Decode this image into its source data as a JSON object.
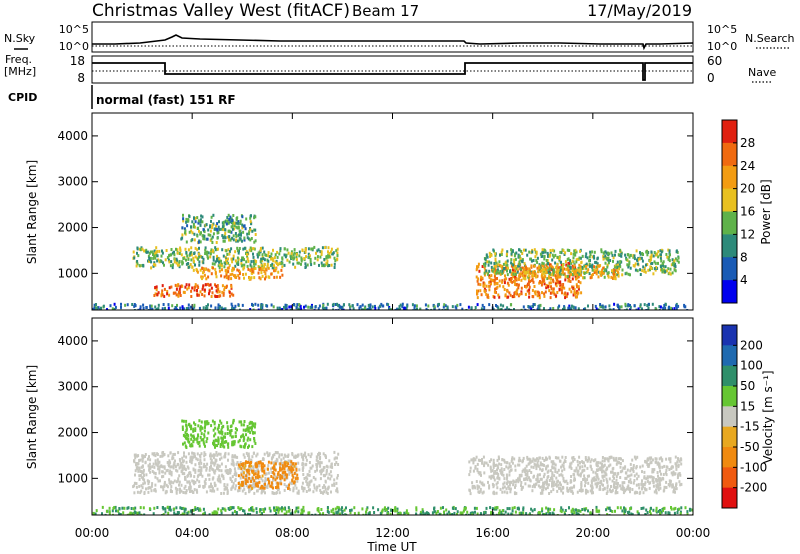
{
  "header": {
    "title": "Christmas Valley West (fitACF)",
    "beam": "Beam 17",
    "date": "17/May/2019"
  },
  "summary_panels": {
    "nsky_label": "N.Sky",
    "nsearch_label": "N.Search",
    "noise_ticks": [
      "10^5",
      "10^0"
    ],
    "freq_label_1": "Freq.",
    "freq_label_2": "[MHz]",
    "freq_ticks": [
      "18",
      "8"
    ],
    "nave_label": "Nave",
    "nave_ticks": [
      "60",
      "0"
    ],
    "cpid_label": "CPID",
    "cpid_text": "normal (fast) 151 RF"
  },
  "colors": {
    "power_scale": [
      "#0000ee",
      "#1a5bb5",
      "#2d8a7a",
      "#5fb24a",
      "#e8c020",
      "#f39c12",
      "#f06a10",
      "#e02010"
    ],
    "velocity_scale": [
      "#1a33b0",
      "#1f6ab0",
      "#2f8f6a",
      "#66c633",
      "#c8c8c0",
      "#e8a820",
      "#f08a10",
      "#f05a10",
      "#e01010"
    ]
  },
  "chart_data": [
    {
      "type": "heatmap",
      "name": "power",
      "xlabel": "",
      "ylabel": "Slant Range [km]",
      "x_ticks": [
        "00:00",
        "04:00",
        "08:00",
        "12:00",
        "16:00",
        "20:00",
        "00:00"
      ],
      "xlim_hours": [
        0,
        24
      ],
      "ylim": [
        200,
        4500
      ],
      "y_ticks": [
        1000,
        2000,
        3000,
        4000
      ],
      "colorbar_label": "Power [dB]",
      "colorbar_ticks": [
        4,
        8,
        12,
        16,
        20,
        24,
        28
      ],
      "colorbar_range": [
        0,
        32
      ],
      "regions": [
        {
          "t0": 0.0,
          "t1": 24.0,
          "r0": 200,
          "r1": 360,
          "value": 8
        },
        {
          "t0": 1.6,
          "t1": 9.8,
          "r0": 1150,
          "r1": 1600,
          "value": 14
        },
        {
          "t0": 2.4,
          "t1": 5.6,
          "r0": 520,
          "r1": 800,
          "value": 26
        },
        {
          "t0": 3.5,
          "t1": 6.5,
          "r0": 1700,
          "r1": 2300,
          "value": 12
        },
        {
          "t0": 4.0,
          "t1": 7.6,
          "r0": 900,
          "r1": 1150,
          "value": 22
        },
        {
          "t0": 15.3,
          "t1": 19.5,
          "r0": 500,
          "r1": 1250,
          "value": 25
        },
        {
          "t0": 15.6,
          "t1": 23.4,
          "r0": 1000,
          "r1": 1550,
          "value": 14
        },
        {
          "t0": 17.0,
          "t1": 21.0,
          "r0": 900,
          "r1": 1200,
          "value": 20
        }
      ]
    },
    {
      "type": "heatmap",
      "name": "velocity",
      "xlabel": "Time UT",
      "ylabel": "Slant Range [km]",
      "x_ticks": [
        "00:00",
        "04:00",
        "08:00",
        "12:00",
        "16:00",
        "20:00",
        "00:00"
      ],
      "xlim_hours": [
        0,
        24
      ],
      "ylim": [
        200,
        4500
      ],
      "y_ticks": [
        1000,
        2000,
        3000,
        4000
      ],
      "colorbar_label": "Velocity [m s⁻¹]",
      "colorbar_ticks": [
        200,
        100,
        50,
        15,
        -15,
        -50,
        -100,
        -200
      ],
      "regions": [
        {
          "t0": 0.0,
          "t1": 24.0,
          "r0": 200,
          "r1": 400,
          "value": 50
        },
        {
          "t0": 1.6,
          "t1": 9.8,
          "r0": 700,
          "r1": 1600,
          "value": 0
        },
        {
          "t0": 3.5,
          "t1": 6.5,
          "r0": 1700,
          "r1": 2300,
          "value": 30
        },
        {
          "t0": 5.8,
          "t1": 8.2,
          "r0": 800,
          "r1": 1400,
          "value": -60
        },
        {
          "t0": 15.0,
          "t1": 23.5,
          "r0": 700,
          "r1": 1500,
          "value": 0
        }
      ]
    }
  ]
}
